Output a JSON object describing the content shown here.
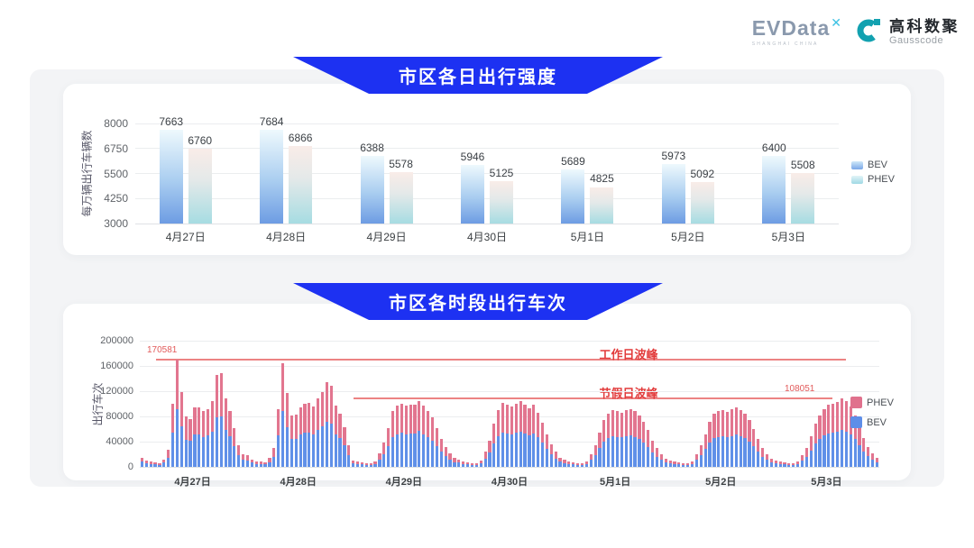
{
  "logo": {
    "evdata_text": "EVData",
    "evdata_sup": "✕",
    "evdata_sub": "SHANGHAI CHINA",
    "gausscode_cn": "高科数聚",
    "gausscode_en": "Gausscode"
  },
  "colors": {
    "banner_blue": "#1d31f2",
    "bev_blue": "#6090e8",
    "phev_pink": "#e2758f",
    "annotation_red": "#e23b3b",
    "grid_gray": "#ebedef",
    "gausscode_teal": "#12a1b0"
  },
  "chart_data": [
    {
      "type": "bar",
      "title": "市区各日出行强度",
      "ylabel": "每万辆出行车辆数",
      "categories": [
        "4月27日",
        "4月28日",
        "4月29日",
        "4月30日",
        "5月1日",
        "5月2日",
        "5月3日"
      ],
      "series": [
        {
          "name": "BEV",
          "values": [
            7663,
            7684,
            6388,
            5946,
            5689,
            5973,
            6400
          ]
        },
        {
          "name": "PHEV",
          "values": [
            6760,
            6866,
            5578,
            5125,
            4825,
            5092,
            5508
          ]
        }
      ],
      "ylim": [
        3000,
        8000
      ],
      "yticks": [
        3000,
        4250,
        5500,
        6750,
        8000
      ],
      "grid": true,
      "legend_position": "right"
    },
    {
      "type": "bar",
      "subtype": "stacked-hourly",
      "title": "市区各时段出行车次",
      "ylabel": "出行车次",
      "categories": [
        "4月27日",
        "4月28日",
        "4月29日",
        "4月30日",
        "5月1日",
        "5月2日",
        "5月3日"
      ],
      "hours_per_day": 24,
      "ylim": [
        0,
        200000
      ],
      "yticks": [
        0,
        40000,
        80000,
        120000,
        160000,
        200000
      ],
      "grid": true,
      "legend": [
        "PHEV",
        "BEV"
      ],
      "annotations": [
        {
          "text": "工作日波峰",
          "label": "170581",
          "value": 170581,
          "span": "full"
        },
        {
          "text": "节假日波峰",
          "label": "108051",
          "value": 108051,
          "span": "partial"
        }
      ],
      "series": [
        {
          "name": "BEV",
          "stack": "total",
          "values_by_day": [
            [
              8000,
              5500,
              4300,
              3800,
              3200,
              6500,
              14500,
              54000,
              91000,
              64000,
              43000,
              41000,
              51000,
              51000,
              47500,
              50000,
              56000,
              79000,
              80000,
              58000,
              48000,
              33000,
              19000,
              11000
            ],
            [
              9500,
              6500,
              4800,
              4300,
              3800,
              7500,
              16000,
              50000,
              88000,
              63000,
              44000,
              45000,
              51000,
              54000,
              54500,
              52000,
              58000,
              64000,
              72000,
              69000,
              52000,
              46000,
              34000,
              19000
            ],
            [
              5400,
              4300,
              3800,
              3200,
              3200,
              4900,
              12000,
              20500,
              33500,
              47500,
              52000,
              54000,
              52000,
              53500,
              53000,
              56500,
              52000,
              47500,
              42000,
              33500,
              24000,
              17000,
              12000,
              7500
            ],
            [
              6500,
              4300,
              3800,
              3200,
              3200,
              5400,
              13000,
              22500,
              36500,
              48500,
              55000,
              53000,
              52000,
              54000,
              56000,
              53000,
              50000,
              53500,
              46500,
              38000,
              28000,
              19500,
              13000,
              8000
            ],
            [
              6000,
              4300,
              3800,
              3200,
              3200,
              4900,
              11000,
              19000,
              29500,
              40500,
              46000,
              48500,
              47500,
              46500,
              48500,
              49500,
              47500,
              44500,
              39000,
              31500,
              22500,
              16000,
              11000,
              7000
            ],
            [
              5400,
              4300,
              3800,
              3200,
              3200,
              4900,
              11000,
              18500,
              28000,
              39000,
              45500,
              47500,
              48500,
              47000,
              49000,
              51000,
              48500,
              45500,
              40000,
              32500,
              24000,
              16000,
              11000,
              7000
            ],
            [
              5400,
              4300,
              3800,
              3200,
              3200,
              4900,
              9500,
              16000,
              26000,
              37000,
              44500,
              50000,
              53000,
              54000,
              55500,
              58500,
              56000,
              52000,
              44500,
              34500,
              25000,
              17500,
              12000,
              7500
            ]
          ]
        },
        {
          "name": "PHEV",
          "stack": "total",
          "values_by_day": [
            [
              7000,
              4500,
              3700,
              3200,
              2800,
              5500,
              12500,
              46000,
              79581,
              55000,
              37000,
              35000,
              43000,
              44000,
              40500,
              42000,
              48000,
              67000,
              69000,
              50000,
              41000,
              29000,
              16000,
              9000
            ],
            [
              8500,
              5500,
              4200,
              3700,
              3200,
              6500,
              14000,
              42000,
              76000,
              54000,
              38000,
              38000,
              44000,
              46000,
              46500,
              44000,
              50000,
              54000,
              62000,
              59000,
              45000,
              39000,
              29000,
              16000
            ],
            [
              4600,
              3700,
              3200,
              2800,
              2800,
              4100,
              10000,
              17500,
              28500,
              40500,
              45000,
              46000,
              45000,
              45500,
              45000,
              48500,
              45000,
              40500,
              36000,
              28500,
              21000,
              15000,
              10000,
              6500
            ],
            [
              5500,
              3700,
              3200,
              2800,
              2800,
              4600,
              11000,
              19500,
              31500,
              41500,
              47000,
              45000,
              44000,
              46000,
              48000,
              45000,
              43000,
              45500,
              39500,
              32000,
              24000,
              16500,
              11000,
              7000
            ],
            [
              5000,
              3700,
              3200,
              2800,
              2800,
              4100,
              9000,
              16000,
              25500,
              34500,
              39000,
              41500,
              40500,
              39500,
              41500,
              42500,
              40500,
              37500,
              33000,
              26500,
              19500,
              14000,
              9000,
              6000
            ],
            [
              4600,
              3700,
              3200,
              2800,
              2800,
              4100,
              9000,
              15500,
              24000,
              33000,
              38500,
              40500,
              41500,
              40000,
              42000,
              43000,
              41500,
              38500,
              34000,
              27500,
              20000,
              14000,
              9000,
              6000
            ],
            [
              4600,
              3700,
              3200,
              2800,
              2800,
              4100,
              8500,
              14000,
              22000,
              31000,
              37500,
              42000,
              45000,
              46000,
              47500,
              49551,
              48000,
              44000,
              37500,
              29500,
              21000,
              14500,
              10000,
              6500
            ]
          ]
        }
      ]
    }
  ]
}
